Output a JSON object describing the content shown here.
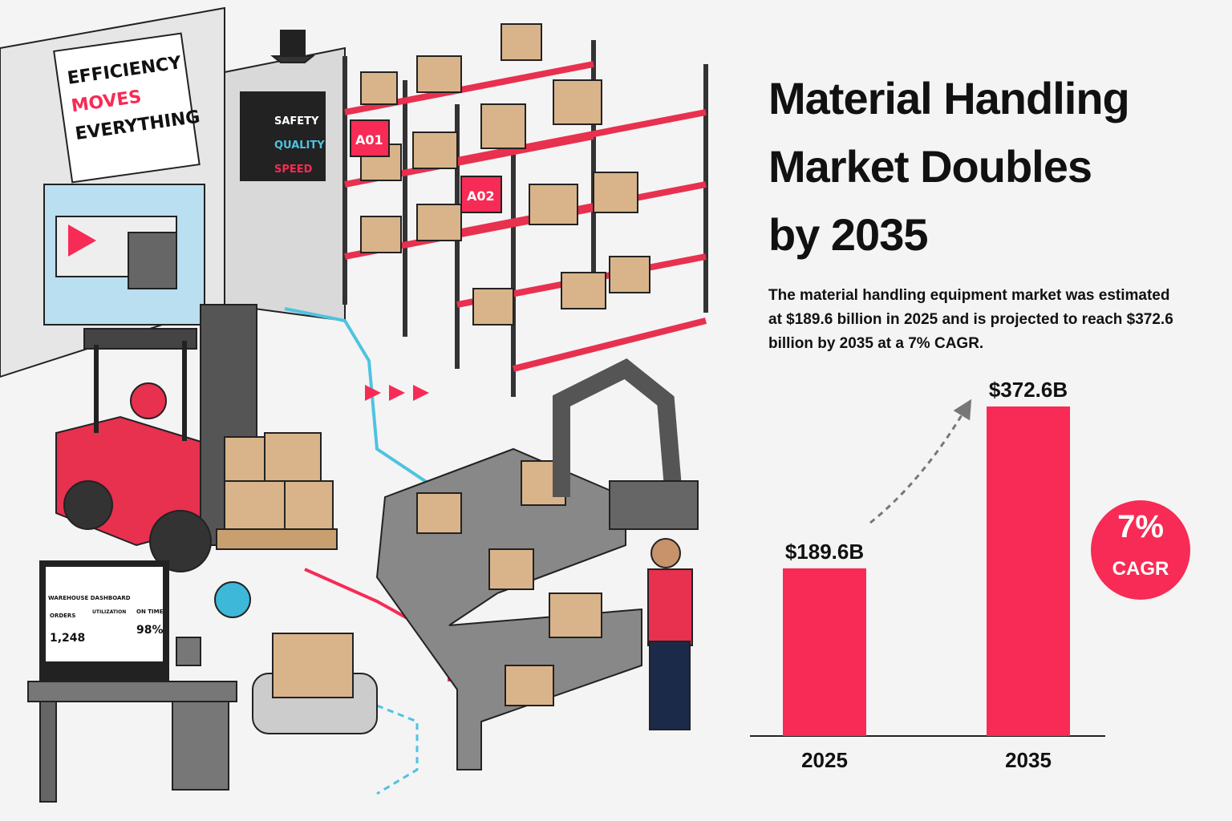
{
  "chart_data": {
    "type": "bar",
    "title": "Material Handling Market Doubles by 2035",
    "subtitle": "The material handling equipment market was estimated at $189.6 billion in 2025 and is projected to reach $372.6 billion by 2035 at a 7% CAGR.",
    "categories": [
      "2025",
      "2035"
    ],
    "values": [
      189.6,
      372.6
    ],
    "value_labels": [
      "$189.6B",
      "$372.6B"
    ],
    "color": "#f72b55",
    "annotations": [
      "7%",
      "CAGR"
    ]
  },
  "illustration": {
    "sign": [
      "EFFICIENCY",
      "MOVES",
      "EVERYTHING"
    ],
    "board": [
      "SAFETY",
      "QUALITY",
      "SPEED"
    ],
    "rack_labels": [
      "A01",
      "A02"
    ],
    "dashboard": {
      "title": "WAREHOUSE DASHBOARD",
      "orders_label": "ORDERS",
      "orders": "1,248",
      "utilization_label": "UTILIZATION",
      "on_time_label": "ON TIME",
      "on_time": "98%"
    }
  }
}
